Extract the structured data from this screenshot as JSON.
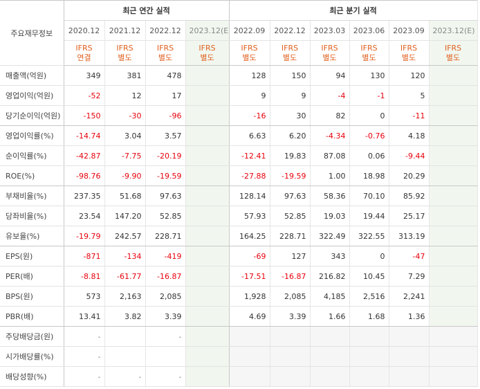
{
  "header": {
    "main_label": "주요재무정보",
    "annual_title": "최근 연간 실적",
    "quarterly_title": "최근 분기 실적",
    "annual_periods": [
      "2020.12",
      "2021.12",
      "2022.12",
      "2023.12(E)"
    ],
    "quarterly_periods": [
      "2022.09",
      "2022.12",
      "2023.03",
      "2023.06",
      "2023.09",
      "2023.12(E)"
    ],
    "annual_ifrs": [
      {
        "top": "IFRS",
        "bottom": "연결"
      },
      {
        "top": "IFRS",
        "bottom": "별도"
      },
      {
        "top": "IFRS",
        "bottom": "별도"
      },
      {
        "top": "IFRS",
        "bottom": "별도"
      }
    ],
    "quarterly_ifrs": [
      {
        "top": "IFRS",
        "bottom": "별도"
      },
      {
        "top": "IFRS",
        "bottom": "별도"
      },
      {
        "top": "IFRS",
        "bottom": "별도"
      },
      {
        "top": "IFRS",
        "bottom": "별도"
      },
      {
        "top": "IFRS",
        "bottom": "별도"
      },
      {
        "top": "IFRS",
        "bottom": "별도"
      }
    ]
  },
  "rows": [
    {
      "label": "매출액(억원)",
      "annual": [
        "349",
        "381",
        "478",
        ""
      ],
      "quarterly": [
        "128",
        "150",
        "94",
        "130",
        "120",
        ""
      ]
    },
    {
      "label": "영업이익(억원)",
      "annual": [
        "-52",
        "12",
        "17",
        ""
      ],
      "quarterly": [
        "9",
        "9",
        "-4",
        "-1",
        "5",
        ""
      ]
    },
    {
      "label": "당기순이익(억원)",
      "annual": [
        "-150",
        "-30",
        "-96",
        ""
      ],
      "quarterly": [
        "-16",
        "30",
        "82",
        "0",
        "-11",
        ""
      ]
    },
    {
      "label": "영업이익률(%)",
      "annual": [
        "-14.74",
        "3.04",
        "3.57",
        ""
      ],
      "quarterly": [
        "6.63",
        "6.20",
        "-4.34",
        "-0.76",
        "4.18",
        ""
      ]
    },
    {
      "label": "순이익률(%)",
      "annual": [
        "-42.87",
        "-7.75",
        "-20.19",
        ""
      ],
      "quarterly": [
        "-12.41",
        "19.83",
        "87.08",
        "0.06",
        "-9.44",
        ""
      ]
    },
    {
      "label": "ROE(%)",
      "annual": [
        "-98.76",
        "-9.90",
        "-19.59",
        ""
      ],
      "quarterly": [
        "-27.88",
        "-19.59",
        "1.00",
        "18.98",
        "20.29",
        ""
      ]
    },
    {
      "label": "부채비율(%)",
      "annual": [
        "237.35",
        "51.68",
        "97.63",
        ""
      ],
      "quarterly": [
        "128.14",
        "97.63",
        "58.36",
        "70.10",
        "85.92",
        ""
      ]
    },
    {
      "label": "당좌비율(%)",
      "annual": [
        "23.54",
        "147.20",
        "52.85",
        ""
      ],
      "quarterly": [
        "57.93",
        "52.85",
        "19.03",
        "19.44",
        "25.17",
        ""
      ]
    },
    {
      "label": "유보율(%)",
      "annual": [
        "-19.79",
        "242.57",
        "228.71",
        ""
      ],
      "quarterly": [
        "164.25",
        "228.71",
        "322.49",
        "322.55",
        "313.19",
        ""
      ]
    },
    {
      "label": "EPS(원)",
      "annual": [
        "-871",
        "-134",
        "-419",
        ""
      ],
      "quarterly": [
        "-69",
        "127",
        "343",
        "0",
        "-47",
        ""
      ]
    },
    {
      "label": "PER(배)",
      "annual": [
        "-8.81",
        "-61.77",
        "-16.87",
        ""
      ],
      "quarterly": [
        "-17.51",
        "-16.87",
        "216.82",
        "10.45",
        "7.29",
        ""
      ]
    },
    {
      "label": "BPS(원)",
      "annual": [
        "573",
        "2,163",
        "2,085",
        ""
      ],
      "quarterly": [
        "1,928",
        "2,085",
        "4,185",
        "2,516",
        "2,241",
        ""
      ]
    },
    {
      "label": "PBR(배)",
      "annual": [
        "13.41",
        "3.82",
        "3.39",
        ""
      ],
      "quarterly": [
        "4.69",
        "3.39",
        "1.66",
        "1.68",
        "1.36",
        ""
      ]
    },
    {
      "label": "주당배당금(원)",
      "annual": [
        "-",
        "",
        "-",
        ""
      ],
      "quarterly": null
    },
    {
      "label": "시가배당률(%)",
      "annual": [
        "-",
        "",
        "",
        ""
      ],
      "quarterly": null
    },
    {
      "label": "배당성향(%)",
      "annual": [
        "-",
        "-",
        "-",
        ""
      ],
      "quarterly": null
    }
  ],
  "group_breaks_after": [
    2,
    5,
    8,
    12
  ],
  "colors": {
    "negative": "#e8000b",
    "ifrs": "#e0601f",
    "estimate_bg": "#f1f7ef"
  }
}
